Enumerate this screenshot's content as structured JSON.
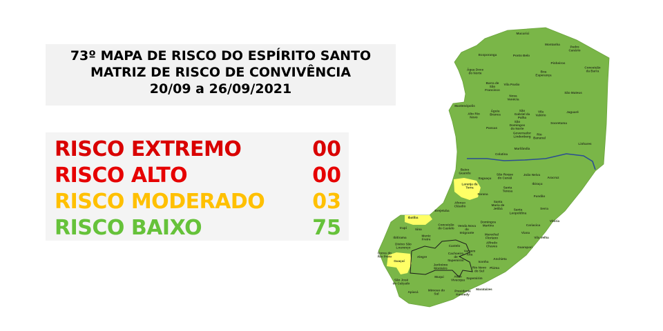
{
  "header": {
    "line1": "73º MAPA DE RISCO DO ESPÍRITO SANTO",
    "line2": "MATRIZ DE RISCO DE CONVIVÊNCIA",
    "line3": "20/09 a 26/09/2021"
  },
  "risk_summary": [
    {
      "label": "RISCO EXTREMO",
      "count": "00",
      "color": "#d90000"
    },
    {
      "label": "RISCO ALTO",
      "count": "00",
      "color": "#e60000"
    },
    {
      "label": "RISCO MODERADO",
      "count": "03",
      "color": "#ffc000"
    },
    {
      "label": "RISCO BAIXO",
      "count": "75",
      "color": "#66c23a"
    }
  ],
  "map": {
    "colors": {
      "baixo": "#7ab648",
      "moderado": "#ffff66",
      "river": "#2b4c93"
    },
    "moderate_municipalities": [
      "Laranja da Terra",
      "Ibatiba",
      "Guaçuí"
    ],
    "labels": [
      "Mucurici",
      "Montanha",
      "Pedro Canário",
      "Ecoporanga",
      "Ponto Belo",
      "Pinheiros",
      "Conceição da Barra",
      "Água Doce do Norte",
      "Boa Esperança",
      "Vila Pavão",
      "Barra de São Francisco",
      "São Mateus",
      "Nova Venécia",
      "Mantenópolis",
      "Águia Branca",
      "São Gabriel da Palha",
      "Vila Valério",
      "Jaguaré",
      "Alto Rio Novo",
      "Sooretama",
      "São Domingos do Norte",
      "Pancas",
      "Governador Lindenberg",
      "Rio Bananal",
      "Linhares",
      "Marilândia",
      "Colatina",
      "Baixo Guandu",
      "Itaguaçu",
      "São Roque do Canaã",
      "João Neiva",
      "Aracruz",
      "Laranja da Terra",
      "Ibiraçu",
      "Santa Teresa",
      "Itarana",
      "Fundão",
      "Afonso Cláudio",
      "Santa Maria de Jetibá",
      "Serra",
      "Santa Leopoldina",
      "Brejetuba",
      "Ibatiba",
      "Vitória",
      "Cariacica",
      "Domingos Martins",
      "Conceição do Castelo",
      "Venda Nova do Imigrante",
      "Iúna",
      "Irupi",
      "Viana",
      "Marechal Floriano",
      "Vila Velha",
      "Ibitirama",
      "Muniz Freire",
      "Alfredo Chaves",
      "Castelo",
      "Divino São Lourenço",
      "Guarapari",
      "Dores do Rio Preto",
      "Vargem Alta",
      "Cachoeiro de Itapemirim",
      "Alegre",
      "Guaçuí",
      "Anchieta",
      "Iconha",
      "Jerônimo Monteiro",
      "Rio Novo do Sul",
      "Piúma",
      "Muqui",
      "Atílio Vivacqua",
      "Itapemirim",
      "São José do Calçado",
      "Marataízes",
      "Apiacá",
      "Mimoso do Sul",
      "Presidente Kennedy"
    ]
  }
}
